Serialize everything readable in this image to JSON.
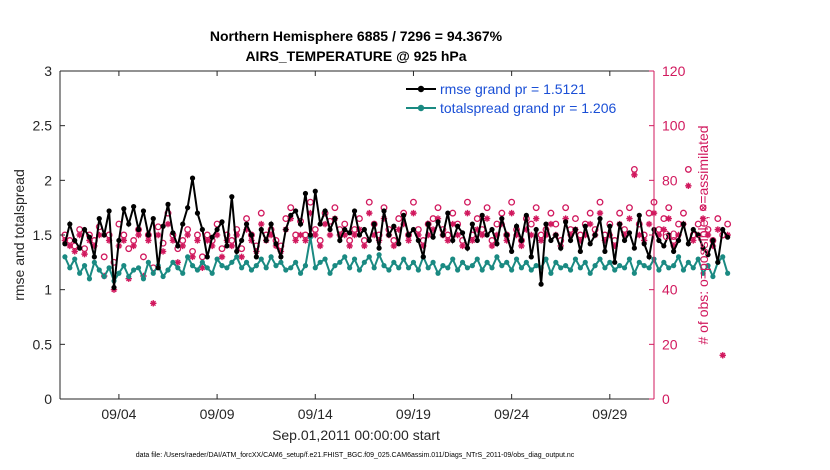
{
  "chart_data": {
    "type": "line",
    "title_lines": [
      "Northern Hemisphere 6885 / 7296 = 94.367%",
      "AIRS_TEMPERATURE @ 925 hPa"
    ],
    "xlabel": "Sep.01,2011 00:00:00 start",
    "ylabel_left": "rmse and totalspread",
    "ylabel_right": "# of obs: o=possible; ×=assimilated",
    "ylim_left": [
      0,
      3
    ],
    "ylim_right": [
      0,
      120
    ],
    "xlim": [
      1.0,
      31.25
    ],
    "x_ticks": [
      {
        "value": 4,
        "label": "09/04"
      },
      {
        "value": 9,
        "label": "09/09"
      },
      {
        "value": 14,
        "label": "09/14"
      },
      {
        "value": 19,
        "label": "09/19"
      },
      {
        "value": 24,
        "label": "09/24"
      },
      {
        "value": 29,
        "label": "09/29"
      }
    ],
    "yticks_left": [
      "0",
      "0.5",
      "1",
      "1.5",
      "2",
      "2.5",
      "3"
    ],
    "yticks_right": [
      "0",
      "20",
      "40",
      "60",
      "80",
      "100",
      "120"
    ],
    "x_start": 1.25,
    "x_step": 0.25,
    "series": [
      {
        "name": "rmse grand pr = 1.5121",
        "axis": "left",
        "color": "#000000",
        "values": [
          1.42,
          1.6,
          1.45,
          1.38,
          1.55,
          1.48,
          1.3,
          1.65,
          1.5,
          1.72,
          1.02,
          1.45,
          1.74,
          1.6,
          1.76,
          1.55,
          1.72,
          1.5,
          1.65,
          1.2,
          1.58,
          1.78,
          1.52,
          1.4,
          1.6,
          1.75,
          2.02,
          1.7,
          1.55,
          1.3,
          1.48,
          1.55,
          1.62,
          1.4,
          1.85,
          1.35,
          1.45,
          1.6,
          1.5,
          1.3,
          1.55,
          1.45,
          1.6,
          1.42,
          1.3,
          1.55,
          1.68,
          1.72,
          1.6,
          1.88,
          1.5,
          1.9,
          1.6,
          1.72,
          1.55,
          1.65,
          1.45,
          1.55,
          1.52,
          1.72,
          1.5,
          1.55,
          1.45,
          1.6,
          1.38,
          1.72,
          1.5,
          1.58,
          1.42,
          1.68,
          1.5,
          1.55,
          1.45,
          1.3,
          1.6,
          1.48,
          1.62,
          1.5,
          1.7,
          1.45,
          1.58,
          1.52,
          1.38,
          1.6,
          1.45,
          1.68,
          1.5,
          1.55,
          1.42,
          1.65,
          1.5,
          1.35,
          1.58,
          1.45,
          1.68,
          1.3,
          1.55,
          1.05,
          1.6,
          1.45,
          1.5,
          1.38,
          1.62,
          1.45,
          1.55,
          1.35,
          1.58,
          1.42,
          1.5,
          1.65,
          1.35,
          1.58,
          1.25,
          1.6,
          1.45,
          1.52,
          1.38,
          1.68,
          1.42,
          1.3,
          1.55,
          1.45,
          1.4,
          1.5,
          1.35,
          1.45,
          1.6,
          1.42,
          1.55,
          1.5,
          1.38,
          1.32,
          1.45,
          1.25,
          1.55,
          1.48
        ],
        "markers": "dot"
      },
      {
        "name": "totalspread grand pr = 1.206",
        "axis": "left",
        "color": "#1a8a82",
        "values": [
          1.3,
          1.2,
          1.28,
          1.15,
          1.22,
          1.1,
          1.25,
          1.18,
          1.12,
          1.2,
          1.08,
          1.15,
          1.22,
          1.12,
          1.18,
          1.2,
          1.1,
          1.25,
          1.15,
          1.22,
          1.12,
          1.18,
          1.25,
          1.2,
          1.15,
          1.3,
          1.22,
          1.18,
          1.25,
          1.2,
          1.15,
          1.28,
          1.22,
          1.2,
          1.25,
          1.3,
          1.2,
          1.25,
          1.18,
          1.22,
          1.28,
          1.2,
          1.3,
          1.22,
          1.25,
          1.18,
          1.2,
          1.25,
          1.15,
          1.22,
          1.48,
          1.2,
          1.25,
          1.28,
          1.15,
          1.22,
          1.25,
          1.3,
          1.2,
          1.28,
          1.18,
          1.25,
          1.3,
          1.2,
          1.32,
          1.22,
          1.18,
          1.25,
          1.2,
          1.28,
          1.2,
          1.25,
          1.18,
          1.3,
          1.2,
          1.25,
          1.15,
          1.22,
          1.2,
          1.28,
          1.18,
          1.25,
          1.2,
          1.22,
          1.28,
          1.18,
          1.25,
          1.2,
          1.3,
          1.22,
          1.25,
          1.18,
          1.28,
          1.2,
          1.25,
          1.18,
          1.22,
          1.2,
          1.28,
          1.15,
          1.25,
          1.2,
          1.22,
          1.18,
          1.28,
          1.2,
          1.25,
          1.15,
          1.22,
          1.28,
          1.2,
          1.25,
          1.18,
          1.22,
          1.2,
          1.28,
          1.15,
          1.25,
          1.22,
          1.2,
          1.28,
          1.18,
          1.25,
          1.2,
          1.22,
          1.3,
          1.18,
          1.25,
          1.2,
          1.28,
          1.15,
          1.22,
          1.12,
          1.25,
          1.3,
          1.15
        ],
        "markers": "dot"
      },
      {
        "name": "obs possible",
        "axis": "right",
        "color": "#d1195e",
        "values": [
          60,
          58,
          56,
          62,
          55,
          60,
          58,
          63,
          52,
          60,
          50,
          64,
          60,
          55,
          58,
          62,
          52,
          60,
          48,
          63,
          57,
          68,
          60,
          55,
          58,
          62,
          54,
          60,
          52,
          60,
          58,
          64,
          55,
          60,
          58,
          62,
          55,
          66,
          60,
          56,
          68,
          60,
          62,
          58,
          56,
          66,
          70,
          60,
          65,
          60,
          72,
          62,
          58,
          68,
          65,
          70,
          62,
          64,
          58,
          62,
          66,
          58,
          72,
          64,
          60,
          70,
          62,
          58,
          66,
          68,
          60,
          72,
          62,
          58,
          64,
          66,
          70,
          62,
          60,
          68,
          64,
          58,
          72,
          60,
          66,
          62,
          70,
          58,
          64,
          68,
          60,
          72,
          62,
          58,
          66,
          64,
          70,
          60,
          62,
          68,
          64,
          58,
          70,
          62,
          66,
          60,
          64,
          68,
          62,
          72,
          60,
          64,
          58,
          68,
          62,
          70,
          84,
          64,
          60,
          68,
          72,
          62,
          66,
          70,
          58,
          64,
          68,
          84,
          60,
          64,
          70,
          62,
          58,
          66,
          60,
          64
        ]
      },
      {
        "name": "obs assimilated",
        "axis": "right",
        "color": "#d1195e",
        "values": [
          58,
          56,
          54,
          60,
          53,
          58,
          56,
          60,
          45,
          58,
          40,
          56,
          58,
          44,
          56,
          60,
          45,
          58,
          35,
          60,
          54,
          64,
          58,
          50,
          56,
          60,
          52,
          58,
          48,
          58,
          56,
          60,
          52,
          58,
          56,
          60,
          52,
          62,
          58,
          54,
          64,
          58,
          60,
          56,
          54,
          62,
          66,
          58,
          60,
          58,
          68,
          60,
          56,
          64,
          60,
          66,
          60,
          60,
          56,
          60,
          62,
          56,
          68,
          60,
          58,
          66,
          60,
          56,
          62,
          64,
          58,
          68,
          60,
          56,
          60,
          62,
          66,
          60,
          58,
          64,
          60,
          56,
          68,
          58,
          62,
          60,
          66,
          56,
          60,
          64,
          58,
          68,
          60,
          56,
          62,
          60,
          66,
          58,
          60,
          64,
          60,
          56,
          66,
          60,
          62,
          58,
          60,
          64,
          60,
          68,
          58,
          60,
          56,
          64,
          60,
          66,
          82,
          60,
          58,
          64,
          68,
          60,
          62,
          66,
          56,
          60,
          64,
          78,
          58,
          60,
          66,
          60,
          56,
          62,
          16,
          60
        ]
      }
    ],
    "legend": [
      "rmse grand pr = 1.5121",
      "totalspread grand pr = 1.206"
    ],
    "legend_position": "top-right"
  },
  "footnote": "data file: /Users/raeder/DAI/ATM_forcXX/CAM6_setup/f.e21.FHIST_BGC.f09_025.CAM6assim.011/Diags_NTrS_2011-09/obs_diag_output.nc"
}
